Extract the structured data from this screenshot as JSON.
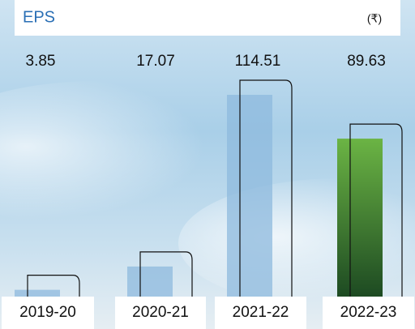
{
  "chart_data": {
    "type": "bar",
    "title": "EPS",
    "unit": "(₹)",
    "categories": [
      "2019-20",
      "2020-21",
      "2021-22",
      "2022-23"
    ],
    "values": [
      3.85,
      17.07,
      114.51,
      89.63
    ],
    "colors": [
      "#8db9de",
      "#8db9de",
      "#8db9de",
      "#6bb444"
    ]
  }
}
